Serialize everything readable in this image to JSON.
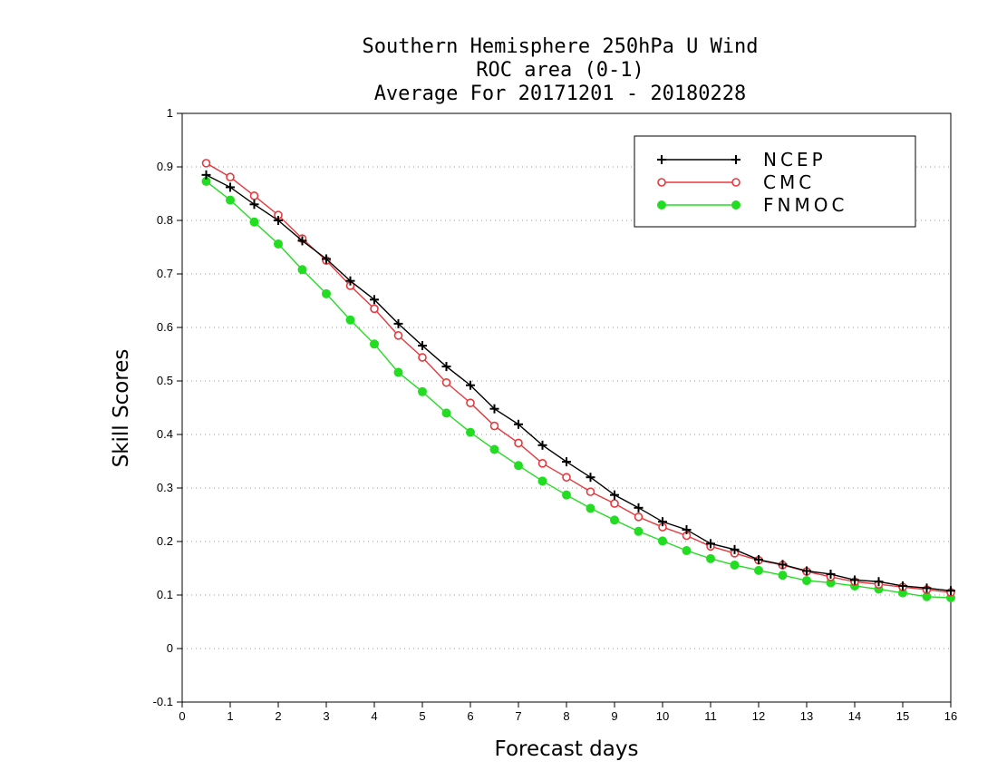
{
  "chart_data": {
    "type": "line",
    "title_lines": [
      "Southern Hemisphere 250hPa U Wind",
      "ROC area (0-1)",
      "Average For 20171201 - 20180228"
    ],
    "xlabel": "Forecast days",
    "ylabel": "Skill Scores",
    "xlim": [
      0,
      16
    ],
    "ylim": [
      -0.1,
      1
    ],
    "x_ticks": [
      "0",
      "1",
      "2",
      "3",
      "4",
      "5",
      "6",
      "7",
      "8",
      "9",
      "10",
      "11",
      "12",
      "13",
      "14",
      "15",
      "16"
    ],
    "y_ticks": [
      "1",
      "0.9",
      "0.8",
      "0.7",
      "0.6",
      "0.5",
      "0.4",
      "0.3",
      "0.2",
      "0.1",
      "0",
      "-0.1"
    ],
    "grid": "horizontal-dotted",
    "legend_position": "top-right",
    "x": [
      0.5,
      1,
      1.5,
      2,
      2.5,
      3,
      3.5,
      4,
      4.5,
      5,
      5.5,
      6,
      6.5,
      7,
      7.5,
      8,
      8.5,
      9,
      9.5,
      10,
      10.5,
      11,
      11.5,
      12,
      12.5,
      13,
      13.5,
      14,
      14.5,
      15,
      15.5,
      16
    ],
    "series": [
      {
        "name": "NCEP",
        "color": "#000000",
        "marker": "plus",
        "values": [
          0.885,
          0.862,
          0.83,
          0.8,
          0.762,
          0.728,
          0.687,
          0.652,
          0.607,
          0.566,
          0.527,
          0.492,
          0.448,
          0.419,
          0.38,
          0.349,
          0.32,
          0.287,
          0.263,
          0.237,
          0.222,
          0.196,
          0.185,
          0.166,
          0.157,
          0.145,
          0.139,
          0.128,
          0.125,
          0.117,
          0.113,
          0.108
        ]
      },
      {
        "name": "CMC",
        "color": "#e8383c",
        "marker": "open-circle",
        "values": [
          0.907,
          0.881,
          0.846,
          0.81,
          0.766,
          0.725,
          0.678,
          0.635,
          0.585,
          0.544,
          0.497,
          0.459,
          0.416,
          0.384,
          0.346,
          0.32,
          0.293,
          0.271,
          0.246,
          0.227,
          0.211,
          0.191,
          0.178,
          0.165,
          0.156,
          0.144,
          0.134,
          0.125,
          0.12,
          0.115,
          0.11,
          0.105
        ]
      },
      {
        "name": "FNMOC",
        "color": "#22dd22",
        "marker": "filled-circle",
        "values": [
          0.873,
          0.838,
          0.797,
          0.756,
          0.708,
          0.663,
          0.614,
          0.569,
          0.516,
          0.48,
          0.44,
          0.404,
          0.372,
          0.342,
          0.313,
          0.287,
          0.262,
          0.24,
          0.219,
          0.201,
          0.183,
          0.168,
          0.156,
          0.146,
          0.137,
          0.127,
          0.123,
          0.117,
          0.111,
          0.104,
          0.097,
          0.095
        ]
      }
    ]
  }
}
